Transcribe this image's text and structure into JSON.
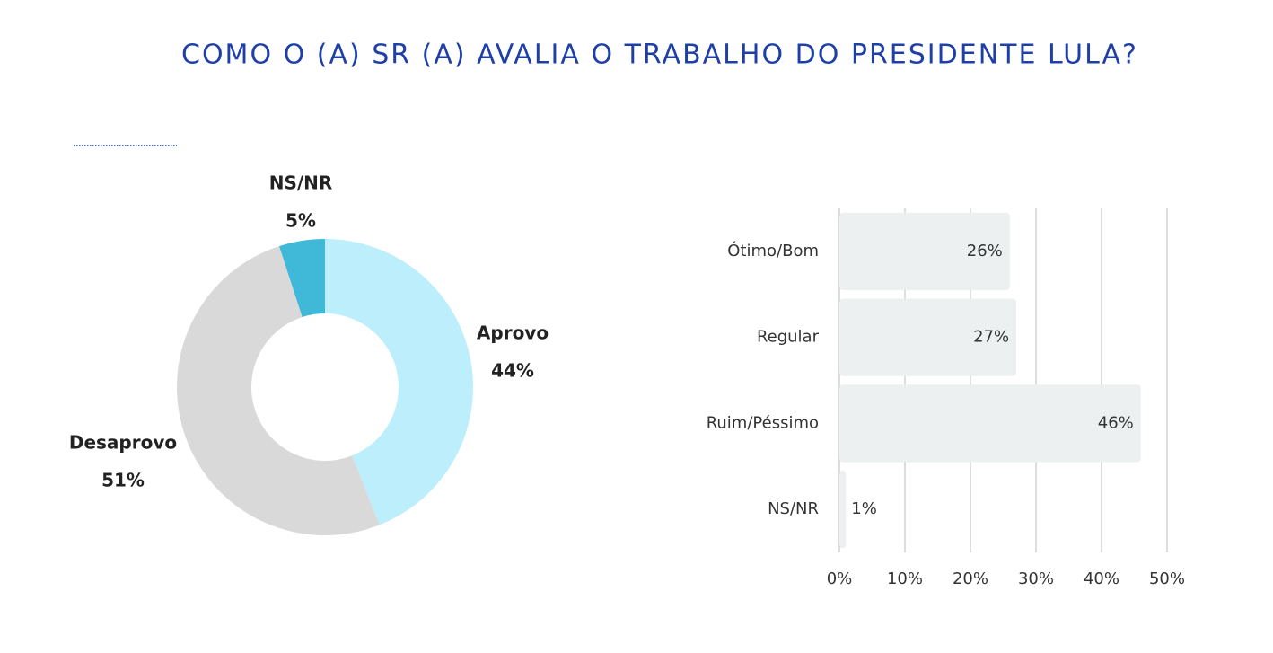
{
  "title": "COMO O (A) SR (A) AVALIA O TRABALHO DO PRESIDENTE LULA?",
  "chart_data": [
    {
      "type": "donut",
      "categories": [
        "Aprovo",
        "Desaprovo",
        "NS/NR"
      ],
      "values": [
        44,
        51,
        5
      ],
      "value_labels": [
        "44%",
        "51%",
        "5%"
      ],
      "colors": [
        "#bdeefc",
        "#d9d9d9",
        "#40b8d8"
      ]
    },
    {
      "type": "hbar",
      "categories": [
        "Ótimo/Bom",
        "Regular",
        "Ruim/Péssimo",
        "NS/NR"
      ],
      "values": [
        26,
        27,
        46,
        1
      ],
      "value_labels": [
        "26%",
        "27%",
        "46%",
        "1%"
      ],
      "color": "#edf0f0",
      "xlim": [
        0,
        50
      ],
      "xticks": [
        {
          "value": 0,
          "label": "0%"
        },
        {
          "value": 10,
          "label": "10%"
        },
        {
          "value": 20,
          "label": "20%"
        },
        {
          "value": 30,
          "label": "30%"
        },
        {
          "value": 40,
          "label": "40%"
        },
        {
          "value": 50,
          "label": "50%"
        }
      ],
      "grid": true
    }
  ]
}
